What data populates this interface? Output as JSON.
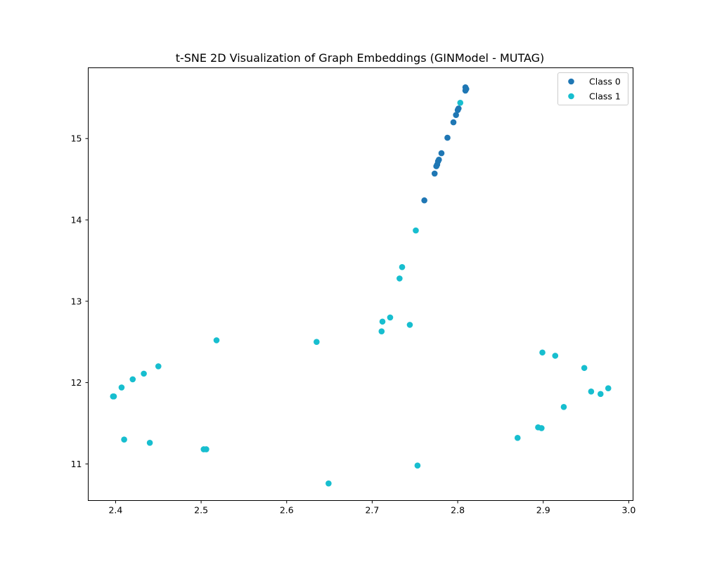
{
  "chart_data": {
    "type": "scatter",
    "title": "t-SNE 2D Visualization of Graph Embeddings (GINModel - MUTAG)",
    "xlabel": "",
    "ylabel": "",
    "xlim": [
      2.368,
      3.005
    ],
    "ylim": [
      10.55,
      15.87
    ],
    "xticks": [
      2.4,
      2.5,
      2.6,
      2.7,
      2.8,
      2.9,
      3.0
    ],
    "xtick_labels": [
      "2.4",
      "2.5",
      "2.6",
      "2.7",
      "2.8",
      "2.9",
      "3.0"
    ],
    "yticks": [
      11,
      12,
      13,
      14,
      15
    ],
    "ytick_labels": [
      "11",
      "12",
      "13",
      "14",
      "15"
    ],
    "grid": false,
    "legend_position": "top-right",
    "series": [
      {
        "name": "Class 0",
        "color": "#1f77b4",
        "points": [
          [
            2.809,
            15.63
          ],
          [
            2.81,
            15.61
          ],
          [
            2.809,
            15.59
          ],
          [
            2.801,
            15.37
          ],
          [
            2.8,
            15.35
          ],
          [
            2.798,
            15.29
          ],
          [
            2.795,
            15.2
          ],
          [
            2.788,
            15.01
          ],
          [
            2.781,
            14.82
          ],
          [
            2.778,
            14.74
          ],
          [
            2.777,
            14.72
          ],
          [
            2.776,
            14.68
          ],
          [
            2.775,
            14.66
          ],
          [
            2.773,
            14.57
          ],
          [
            2.761,
            14.24
          ]
        ]
      },
      {
        "name": "Class 1",
        "color": "#17becf",
        "points": [
          [
            2.803,
            15.44
          ],
          [
            2.751,
            13.87
          ],
          [
            2.735,
            13.42
          ],
          [
            2.732,
            13.28
          ],
          [
            2.721,
            12.8
          ],
          [
            2.712,
            12.75
          ],
          [
            2.744,
            12.71
          ],
          [
            2.711,
            12.63
          ],
          [
            2.518,
            12.52
          ],
          [
            2.635,
            12.5
          ],
          [
            2.45,
            12.2
          ],
          [
            2.433,
            12.11
          ],
          [
            2.42,
            12.04
          ],
          [
            2.407,
            11.94
          ],
          [
            2.398,
            11.83
          ],
          [
            2.397,
            11.83
          ],
          [
            2.41,
            11.3
          ],
          [
            2.44,
            11.26
          ],
          [
            2.503,
            11.18
          ],
          [
            2.506,
            11.18
          ],
          [
            2.649,
            10.76
          ],
          [
            2.753,
            10.98
          ],
          [
            2.899,
            12.37
          ],
          [
            2.914,
            12.33
          ],
          [
            2.948,
            12.18
          ],
          [
            2.956,
            11.89
          ],
          [
            2.976,
            11.93
          ],
          [
            2.967,
            11.86
          ],
          [
            2.924,
            11.7
          ],
          [
            2.87,
            11.32
          ],
          [
            2.894,
            11.45
          ],
          [
            2.898,
            11.44
          ]
        ]
      }
    ]
  }
}
